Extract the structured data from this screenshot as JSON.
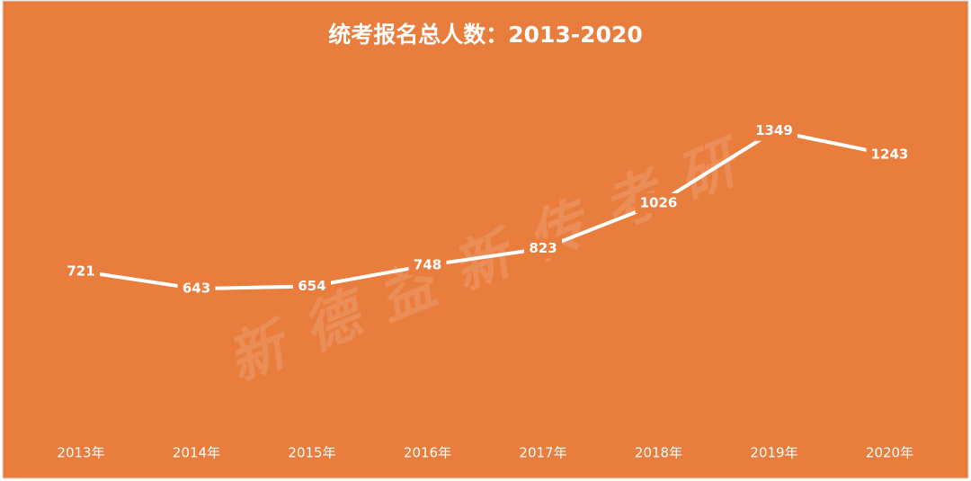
{
  "chart_data": {
    "type": "line",
    "title": "统考报名总人数：2013-2020",
    "categories": [
      "2013年",
      "2014年",
      "2015年",
      "2016年",
      "2017年",
      "2018年",
      "2019年",
      "2020年"
    ],
    "series": [
      {
        "name": "统考报名总人数",
        "color": "#ffffff",
        "values": [
          721,
          643,
          654,
          748,
          823,
          1026,
          1349,
          1243
        ]
      }
    ],
    "ylim": [
      0,
      1400
    ],
    "data_labels": true,
    "drop_lines": true,
    "background": "#e97d3e",
    "watermark": "新德益新传考研"
  }
}
